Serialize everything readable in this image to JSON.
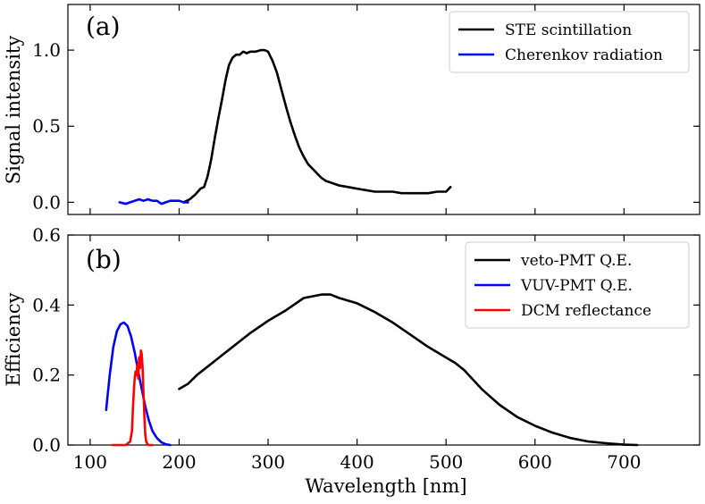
{
  "chart_data": [
    {
      "panel": "(a)",
      "type": "line",
      "xlabel": "",
      "ylabel": "Signal intensity",
      "xlim": [
        75,
        785
      ],
      "ylim": [
        -0.08,
        1.3
      ],
      "xticks": [
        100,
        200,
        300,
        400,
        500,
        600,
        700
      ],
      "yticks": [
        0.0,
        0.5,
        1.0
      ],
      "ytick_labels": [
        "0.0",
        "0.5",
        "1.0"
      ],
      "legend_position": "top-right",
      "series": [
        {
          "name": "STE scintillation",
          "color": "#000000",
          "x": [
            205,
            212,
            218,
            224,
            228,
            232,
            236,
            240,
            244,
            248,
            252,
            256,
            260,
            264,
            268,
            272,
            276,
            280,
            286,
            292,
            296,
            300,
            305,
            310,
            315,
            320,
            325,
            330,
            335,
            340,
            345,
            350,
            355,
            360,
            365,
            370,
            375,
            380,
            390,
            400,
            410,
            420,
            430,
            440,
            450,
            460,
            470,
            480,
            490,
            500,
            505
          ],
          "y": [
            0.0,
            0.02,
            0.05,
            0.09,
            0.1,
            0.17,
            0.28,
            0.42,
            0.55,
            0.67,
            0.8,
            0.9,
            0.95,
            0.97,
            0.97,
            0.99,
            0.98,
            0.99,
            0.99,
            1.0,
            1.0,
            0.99,
            0.93,
            0.85,
            0.74,
            0.63,
            0.53,
            0.44,
            0.36,
            0.3,
            0.25,
            0.22,
            0.19,
            0.16,
            0.14,
            0.13,
            0.12,
            0.11,
            0.1,
            0.09,
            0.08,
            0.07,
            0.07,
            0.07,
            0.06,
            0.06,
            0.06,
            0.06,
            0.07,
            0.07,
            0.1
          ]
        },
        {
          "name": "Cherenkov radiation",
          "color": "#0000ff",
          "x": [
            133,
            140,
            145,
            150,
            155,
            160,
            165,
            170,
            175,
            180,
            185,
            190,
            195,
            200,
            205,
            210
          ],
          "y": [
            0.0,
            -0.01,
            0.0,
            0.01,
            0.02,
            0.01,
            0.02,
            0.01,
            0.01,
            -0.01,
            0.0,
            0.01,
            0.01,
            0.01,
            0.0,
            0.0
          ]
        }
      ]
    },
    {
      "panel": "(b)",
      "type": "line",
      "xlabel": "Wavelength [nm]",
      "ylabel": "Efficiency",
      "xlim": [
        75,
        785
      ],
      "ylim": [
        0.0,
        0.6
      ],
      "xticks": [
        100,
        200,
        300,
        400,
        500,
        600,
        700
      ],
      "xtick_labels": [
        "100",
        "200",
        "300",
        "400",
        "500",
        "600",
        "700"
      ],
      "yticks": [
        0.0,
        0.2,
        0.4,
        0.6
      ],
      "ytick_labels": [
        "0.0",
        "0.2",
        "0.4",
        "0.6"
      ],
      "legend_position": "top-right",
      "series": [
        {
          "name": "veto-PMT Q.E.",
          "color": "#000000",
          "x": [
            200,
            210,
            220,
            240,
            260,
            280,
            300,
            320,
            340,
            360,
            370,
            380,
            400,
            420,
            440,
            460,
            480,
            500,
            510,
            520,
            540,
            560,
            580,
            600,
            620,
            640,
            660,
            680,
            700,
            715
          ],
          "y": [
            0.16,
            0.175,
            0.2,
            0.24,
            0.28,
            0.32,
            0.355,
            0.385,
            0.42,
            0.43,
            0.43,
            0.42,
            0.405,
            0.38,
            0.35,
            0.315,
            0.28,
            0.25,
            0.235,
            0.215,
            0.16,
            0.115,
            0.08,
            0.055,
            0.035,
            0.02,
            0.01,
            0.005,
            0.001,
            0.0
          ]
        },
        {
          "name": "VUV-PMT Q.E.",
          "color": "#0000ff",
          "x": [
            118,
            122,
            126,
            130,
            134,
            138,
            142,
            146,
            150,
            154,
            158,
            162,
            166,
            170,
            175,
            180,
            185,
            190
          ],
          "y": [
            0.1,
            0.2,
            0.28,
            0.325,
            0.345,
            0.35,
            0.34,
            0.31,
            0.265,
            0.21,
            0.16,
            0.11,
            0.07,
            0.04,
            0.02,
            0.008,
            0.002,
            0.0
          ]
        },
        {
          "name": "DCM reflectance",
          "color": "#ff0000",
          "x": [
            125,
            140,
            145,
            147,
            148,
            149,
            150,
            151,
            152,
            153,
            154,
            155,
            156,
            157,
            158,
            159,
            160,
            161,
            162,
            163,
            165,
            170
          ],
          "y": [
            0.0,
            0.0,
            0.01,
            0.04,
            0.1,
            0.15,
            0.19,
            0.21,
            0.2,
            0.23,
            0.19,
            0.25,
            0.22,
            0.27,
            0.26,
            0.22,
            0.15,
            0.08,
            0.03,
            0.01,
            0.0,
            0.0
          ]
        }
      ]
    }
  ]
}
